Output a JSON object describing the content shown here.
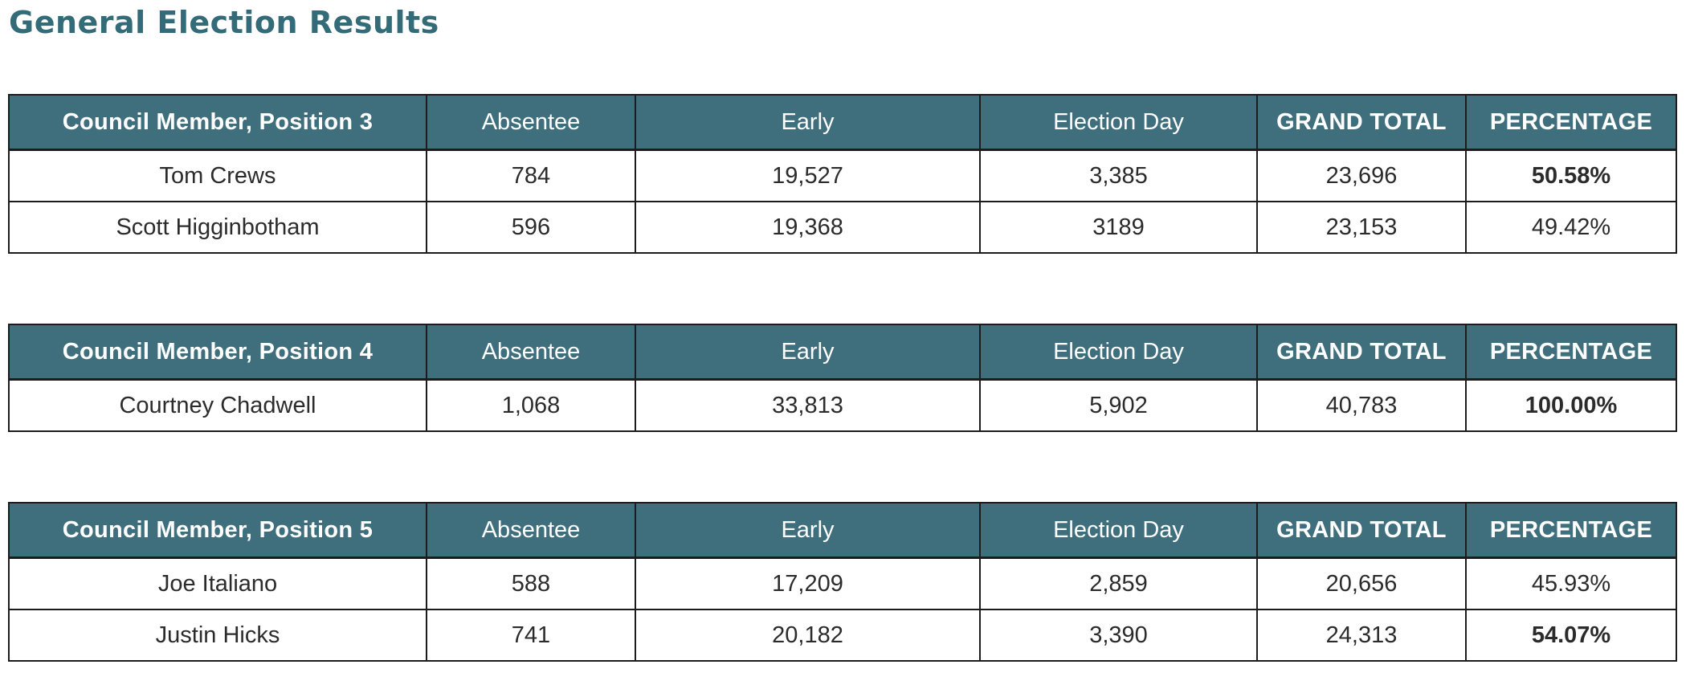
{
  "page": {
    "title": "General Election Results"
  },
  "colors": {
    "header_bg": "#3f6f7d",
    "header_text": "#ffffff",
    "title": "#346b78",
    "border": "#1c1c1c",
    "text": "#2b2b2b"
  },
  "tables": [
    {
      "title": "Council Member, Position 3",
      "columns": [
        "Absentee",
        "Early",
        "Election Day",
        "GRAND TOTAL",
        "PERCENTAGE"
      ],
      "rows": [
        {
          "name": "Tom Crews",
          "absentee": "784",
          "early": "19,527",
          "election_day": "3,385",
          "grand_total": "23,696",
          "percentage": "50.58%",
          "winner": true
        },
        {
          "name": "Scott Higginbotham",
          "absentee": "596",
          "early": "19,368",
          "election_day": "3189",
          "grand_total": "23,153",
          "percentage": "49.42%",
          "winner": false
        }
      ]
    },
    {
      "title": "Council Member, Position 4",
      "columns": [
        "Absentee",
        "Early",
        "Election Day",
        "GRAND TOTAL",
        "PERCENTAGE"
      ],
      "rows": [
        {
          "name": "Courtney Chadwell",
          "absentee": "1,068",
          "early": "33,813",
          "election_day": "5,902",
          "grand_total": "40,783",
          "percentage": "100.00%",
          "winner": true
        }
      ]
    },
    {
      "title": "Council Member, Position 5",
      "columns": [
        "Absentee",
        "Early",
        "Election Day",
        "GRAND TOTAL",
        "PERCENTAGE"
      ],
      "rows": [
        {
          "name": "Joe Italiano",
          "absentee": "588",
          "early": "17,209",
          "election_day": "2,859",
          "grand_total": "20,656",
          "percentage": "45.93%",
          "winner": false
        },
        {
          "name": "Justin Hicks",
          "absentee": "741",
          "early": "20,182",
          "election_day": "3,390",
          "grand_total": "24,313",
          "percentage": "54.07%",
          "winner": true
        }
      ]
    }
  ]
}
